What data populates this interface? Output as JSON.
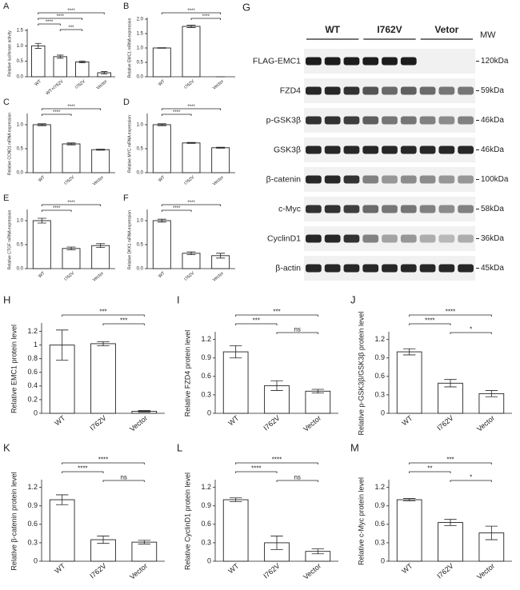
{
  "chart_data": [
    {
      "type": "bar",
      "title": "A",
      "ylabel": "Relative luciferase activity",
      "categories": [
        "WT",
        "WT+I762V",
        "I762V",
        "Vector"
      ],
      "values": [
        1.0,
        0.65,
        0.48,
        0.13
      ],
      "errors": [
        0.08,
        0.05,
        0.03,
        0.04
      ],
      "ylim": [
        0,
        1.5
      ],
      "yticks": [
        {
          "value": 0,
          "label": "0.0"
        },
        {
          "value": 0.5,
          "label": "0.5"
        },
        {
          "value": 1,
          "label": "1.0"
        },
        {
          "value": 1.5,
          "label": "1.5"
        }
      ],
      "color": "#ffffff",
      "comparisons": [
        {
          "from": "WT",
          "to": "Vector",
          "label": "****"
        },
        {
          "from": "WT",
          "to": "I762V",
          "label": "****"
        },
        {
          "from": "WT",
          "to": "WT+I762V",
          "label": "****"
        },
        {
          "from": "WT+I762V",
          "to": "I762V",
          "label": "***"
        }
      ]
    },
    {
      "type": "bar",
      "title": "B",
      "ylabel": "Relative EMC1 mRNA expression",
      "categories": [
        "WT",
        "I762V",
        "Vector"
      ],
      "values": [
        1.0,
        1.75,
        0.0
      ],
      "errors": [
        0.01,
        0.04,
        0.0
      ],
      "ylim": [
        0,
        2.0
      ],
      "yticks": [
        {
          "value": 0,
          "label": "0.0"
        },
        {
          "value": 0.5,
          "label": "0.5"
        },
        {
          "value": 1,
          "label": "1.0"
        },
        {
          "value": 1.5,
          "label": "1.5"
        },
        {
          "value": 2,
          "label": "2.0"
        }
      ],
      "color": "#ffffff",
      "comparisons": [
        {
          "from": "WT",
          "to": "Vector",
          "label": "****"
        },
        {
          "from": "I762V",
          "to": "Vector",
          "label": "****"
        }
      ]
    },
    {
      "type": "bar",
      "title": "C",
      "ylabel": "Relative CCND1 mRNA expression",
      "categories": [
        "WT",
        "I762V",
        "Vector"
      ],
      "values": [
        1.0,
        0.6,
        0.48
      ],
      "errors": [
        0.02,
        0.02,
        0.01
      ],
      "ylim": [
        0,
        1.2
      ],
      "yticks": [
        {
          "value": 0,
          "label": "0.0"
        },
        {
          "value": 0.5,
          "label": "0.5"
        },
        {
          "value": 1,
          "label": "1.0"
        }
      ],
      "color": "#ffffff",
      "comparisons": [
        {
          "from": "WT",
          "to": "Vector",
          "label": "****"
        },
        {
          "from": "WT",
          "to": "I762V",
          "label": "****"
        }
      ]
    },
    {
      "type": "bar",
      "title": "D",
      "ylabel": "Relative MYC mRNA expression",
      "categories": [
        "WT",
        "I762V",
        "Vector"
      ],
      "values": [
        1.0,
        0.62,
        0.52
      ],
      "errors": [
        0.02,
        0.01,
        0.01
      ],
      "ylim": [
        0,
        1.2
      ],
      "yticks": [
        {
          "value": 0,
          "label": "0.0"
        },
        {
          "value": 0.5,
          "label": "0.5"
        },
        {
          "value": 1,
          "label": "1.0"
        }
      ],
      "color": "#ffffff",
      "comparisons": [
        {
          "from": "WT",
          "to": "Vector",
          "label": "****"
        },
        {
          "from": "WT",
          "to": "I762V",
          "label": "****"
        }
      ]
    },
    {
      "type": "bar",
      "title": "E",
      "ylabel": "Relative CTGF mRNA expression",
      "categories": [
        "WT",
        "I762V",
        "Vector"
      ],
      "values": [
        1.0,
        0.42,
        0.48
      ],
      "errors": [
        0.05,
        0.03,
        0.04
      ],
      "ylim": [
        0,
        1.2
      ],
      "yticks": [
        {
          "value": 0,
          "label": "0.0"
        },
        {
          "value": 0.5,
          "label": "0.5"
        },
        {
          "value": 1,
          "label": "1.0"
        }
      ],
      "color": "#ffffff",
      "comparisons": [
        {
          "from": "WT",
          "to": "Vector",
          "label": "****"
        },
        {
          "from": "WT",
          "to": "I762V",
          "label": "****"
        }
      ]
    },
    {
      "type": "bar",
      "title": "F",
      "ylabel": "Relative DKK1 mRNA expression",
      "categories": [
        "WT",
        "I762V",
        "Vector"
      ],
      "values": [
        1.0,
        0.32,
        0.27
      ],
      "errors": [
        0.03,
        0.03,
        0.05
      ],
      "ylim": [
        0,
        1.2
      ],
      "yticks": [
        {
          "value": 0,
          "label": "0.0"
        },
        {
          "value": 0.5,
          "label": "0.5"
        },
        {
          "value": 1,
          "label": "1.0"
        }
      ],
      "color": "#ffffff",
      "comparisons": [
        {
          "from": "WT",
          "to": "Vector",
          "label": "****"
        },
        {
          "from": "WT",
          "to": "I762V",
          "label": "****"
        }
      ]
    },
    {
      "type": "bar",
      "title": "H",
      "ylabel": "Relative EMC1 protein level",
      "categories": [
        "WT",
        "I762V",
        "Vector"
      ],
      "values": [
        1.0,
        1.02,
        0.03
      ],
      "errors": [
        0.22,
        0.03,
        0.01
      ],
      "ylim": [
        0,
        1.3
      ],
      "yticks": [
        0,
        0.2,
        0.4,
        0.6,
        0.8,
        1,
        1.2
      ],
      "color": "#ffffff",
      "comparisons": [
        {
          "from": "WT",
          "to": "Vector",
          "label": "***"
        },
        {
          "from": "I762V",
          "to": "Vector",
          "label": "***"
        }
      ]
    },
    {
      "type": "bar",
      "title": "I",
      "ylabel": "Relative FZD4 protein level",
      "categories": [
        "WT",
        "I762V",
        "Vector"
      ],
      "values": [
        1.0,
        0.45,
        0.36
      ],
      "errors": [
        0.1,
        0.08,
        0.03
      ],
      "ylim": [
        0,
        1.3
      ],
      "yticks": [
        0,
        0.3,
        0.6,
        0.9,
        1.2
      ],
      "color": "#ffffff",
      "comparisons": [
        {
          "from": "WT",
          "to": "Vector",
          "label": "***"
        },
        {
          "from": "WT",
          "to": "I762V",
          "label": "***"
        },
        {
          "from": "I762V",
          "to": "Vector",
          "label": "ns"
        }
      ]
    },
    {
      "type": "bar",
      "title": "J",
      "ylabel": "Relative p-GSK3β/GSK3β protein level",
      "categories": [
        "WT",
        "I762V",
        "Vector"
      ],
      "values": [
        1.0,
        0.49,
        0.32
      ],
      "errors": [
        0.05,
        0.06,
        0.05
      ],
      "ylim": [
        0,
        1.3
      ],
      "yticks": [
        0,
        0.3,
        0.6,
        0.9,
        1.2
      ],
      "color": "#ffffff",
      "comparisons": [
        {
          "from": "WT",
          "to": "Vector",
          "label": "****"
        },
        {
          "from": "WT",
          "to": "I762V",
          "label": "****"
        },
        {
          "from": "I762V",
          "to": "Vector",
          "label": "*"
        }
      ]
    },
    {
      "type": "bar",
      "title": "K",
      "ylabel": "Relative β-catenin protein level",
      "categories": [
        "WT",
        "I762V",
        "Vector"
      ],
      "values": [
        1.0,
        0.35,
        0.31
      ],
      "errors": [
        0.08,
        0.06,
        0.03
      ],
      "ylim": [
        0,
        1.3
      ],
      "yticks": [
        0,
        0.3,
        0.6,
        0.9,
        1.2
      ],
      "color": "#ffffff",
      "comparisons": [
        {
          "from": "WT",
          "to": "Vector",
          "label": "****"
        },
        {
          "from": "WT",
          "to": "I762V",
          "label": "****"
        },
        {
          "from": "I762V",
          "to": "Vector",
          "label": "ns"
        }
      ]
    },
    {
      "type": "bar",
      "title": "L",
      "ylabel": "Relative CyclinD1 protein level",
      "categories": [
        "WT",
        "I762V",
        "Vector"
      ],
      "values": [
        1.0,
        0.3,
        0.16
      ],
      "errors": [
        0.03,
        0.11,
        0.04
      ],
      "ylim": [
        0,
        1.3
      ],
      "yticks": [
        0,
        0.3,
        0.6,
        0.9,
        1.2
      ],
      "color": "#ffffff",
      "comparisons": [
        {
          "from": "WT",
          "to": "Vector",
          "label": "****"
        },
        {
          "from": "WT",
          "to": "I762V",
          "label": "****"
        },
        {
          "from": "I762V",
          "to": "Vector",
          "label": "ns"
        }
      ]
    },
    {
      "type": "bar",
      "title": "M",
      "ylabel": "Relative c-Myc protein level",
      "categories": [
        "WT",
        "I762V",
        "Vector"
      ],
      "values": [
        1.0,
        0.63,
        0.46
      ],
      "errors": [
        0.02,
        0.05,
        0.11
      ],
      "ylim": [
        0,
        1.3
      ],
      "yticks": [
        0,
        0.3,
        0.6,
        0.9,
        1.2
      ],
      "color": "#ffffff",
      "comparisons": [
        {
          "from": "WT",
          "to": "Vector",
          "label": "***"
        },
        {
          "from": "WT",
          "to": "I762V",
          "label": "**"
        },
        {
          "from": "I762V",
          "to": "Vector",
          "label": "*"
        }
      ]
    }
  ],
  "blot": {
    "title": "G",
    "mw_header": "MW",
    "groups": [
      "WT",
      "I762V",
      "Vetor"
    ],
    "rows": [
      {
        "label": "FLAG-EMC1",
        "mw": "120kDa",
        "bands": [
          0.95,
          0.95,
          0.95,
          0.95,
          0.95,
          0.95,
          0,
          0,
          0
        ]
      },
      {
        "label": "FZD4",
        "mw": "59kDa",
        "bands": [
          0.9,
          0.9,
          0.85,
          0.7,
          0.6,
          0.65,
          0.6,
          0.55,
          0.55
        ]
      },
      {
        "label": "p-GSK3β",
        "mw": "46kDa",
        "bands": [
          0.85,
          0.85,
          0.8,
          0.65,
          0.55,
          0.55,
          0.5,
          0.45,
          0.5
        ]
      },
      {
        "label": "GSK3β",
        "mw": "46kDa",
        "bands": [
          0.9,
          0.9,
          0.9,
          0.9,
          0.9,
          0.9,
          0.9,
          0.9,
          0.9
        ]
      },
      {
        "label": "β-catenin",
        "mw": "100kDa",
        "bands": [
          0.9,
          0.9,
          0.85,
          0.5,
          0.4,
          0.45,
          0.45,
          0.4,
          0.4
        ]
      },
      {
        "label": "c-Myc",
        "mw": "58kDa",
        "bands": [
          0.85,
          0.85,
          0.8,
          0.6,
          0.55,
          0.55,
          0.5,
          0.45,
          0.5
        ]
      },
      {
        "label": "CyclinD1",
        "mw": "36kDa",
        "bands": [
          0.9,
          0.9,
          0.85,
          0.5,
          0.35,
          0.4,
          0.3,
          0.25,
          0.3
        ]
      },
      {
        "label": "β-actin",
        "mw": "45kDa",
        "bands": [
          0.9,
          0.9,
          0.9,
          0.9,
          0.9,
          0.9,
          0.9,
          0.9,
          0.9
        ]
      }
    ]
  }
}
